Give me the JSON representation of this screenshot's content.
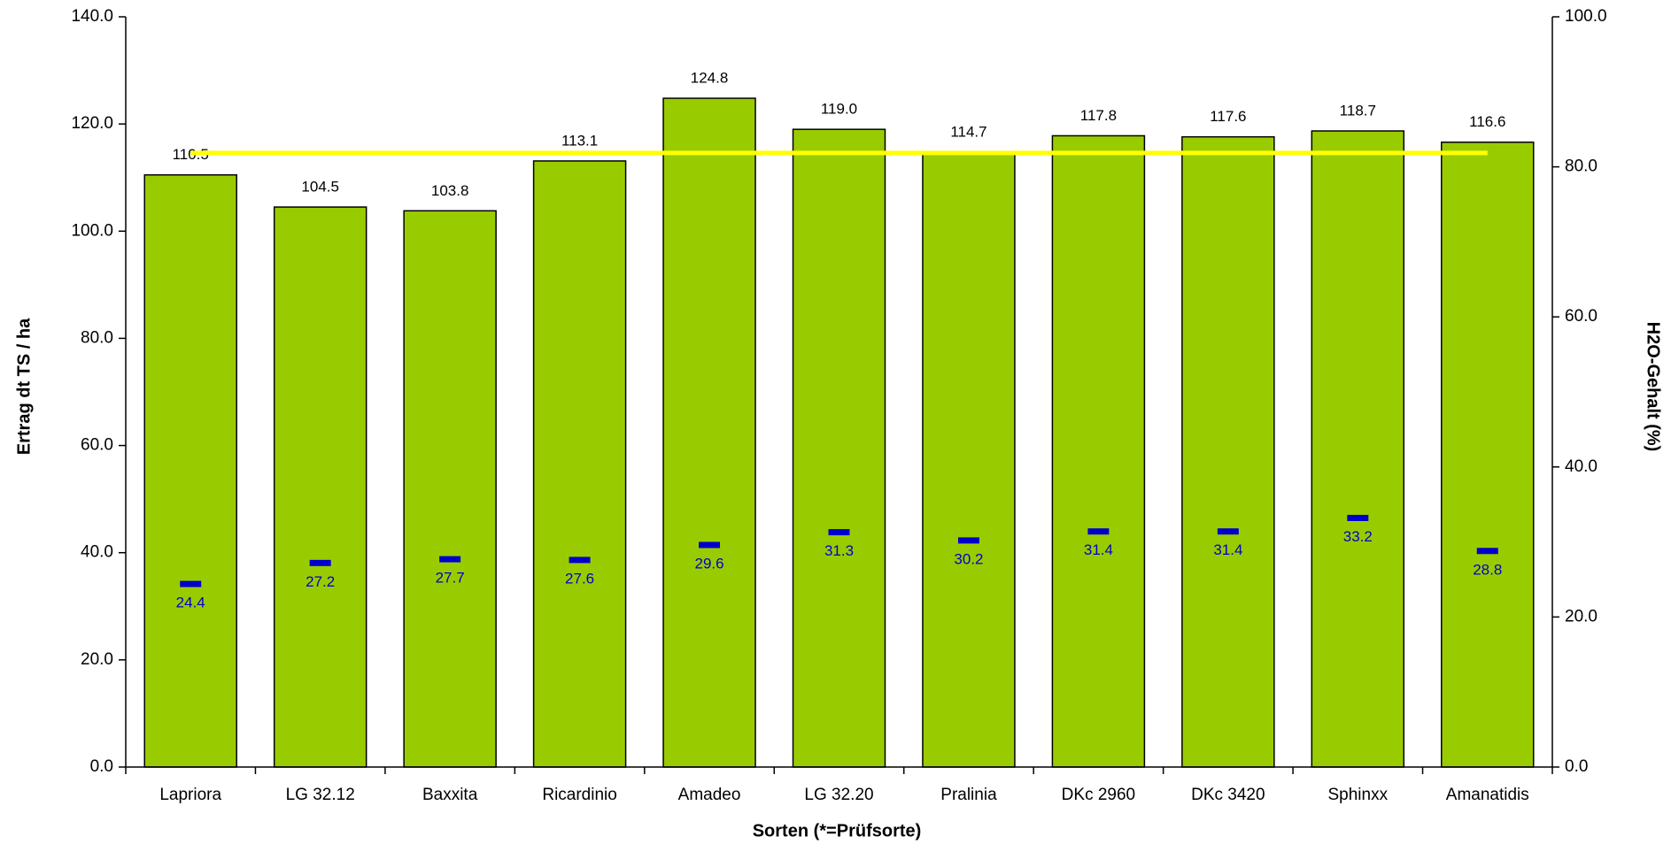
{
  "chart_data": {
    "type": "bar",
    "x_label": "Sorten  (*=Prüfsorte)",
    "y_label": "Ertrag dt TS / ha",
    "y2_label": "H2O-Gehalt (%)",
    "categories": [
      "Lapriora",
      "LG 32.12",
      "Baxxita",
      "Ricardinio",
      "Amadeo",
      "LG 32.20",
      "Pralinia",
      "DKc 2960",
      "DKc 3420",
      "Sphinxx",
      "Amanatidis"
    ],
    "series": [
      {
        "type": "bar",
        "color": "#99cc00",
        "values": [
          110.5,
          104.5,
          103.8,
          113.1,
          124.8,
          119.0,
          114.7,
          117.8,
          117.6,
          118.7,
          116.6
        ],
        "value_labels": [
          "110.5",
          "104.5",
          "103.8",
          "113.1",
          "124.8",
          "119.0",
          "114.7",
          "117.8",
          "117.6",
          "118.7",
          "116.6"
        ]
      },
      {
        "type": "marker",
        "axis": "y2",
        "color": "#0000cc",
        "values": [
          24.4,
          27.2,
          27.7,
          27.6,
          29.6,
          31.3,
          30.2,
          31.4,
          31.4,
          33.2,
          28.8
        ]
      }
    ],
    "mean_line": {
      "value": 114.6,
      "color": "#ffff00"
    },
    "ylim": [
      0,
      140
    ],
    "yticks": [
      {
        "value": 0,
        "label": "0.0"
      },
      {
        "value": 20,
        "label": "20.0"
      },
      {
        "value": 40,
        "label": "40.0"
      },
      {
        "value": 60,
        "label": "60.0"
      },
      {
        "value": 80,
        "label": "80.0"
      },
      {
        "value": 100,
        "label": "100.0"
      },
      {
        "value": 120,
        "label": "120.0"
      },
      {
        "value": 140,
        "label": "140.0"
      }
    ],
    "y2lim": [
      0,
      100
    ],
    "y2ticks": [
      {
        "value": 0,
        "label": "0.0"
      },
      {
        "value": 20,
        "label": "20.0"
      },
      {
        "value": 40,
        "label": "40.0"
      },
      {
        "value": 60,
        "label": "60.0"
      },
      {
        "value": 80,
        "label": "80.0"
      },
      {
        "value": 100,
        "label": "100.0"
      }
    ]
  }
}
